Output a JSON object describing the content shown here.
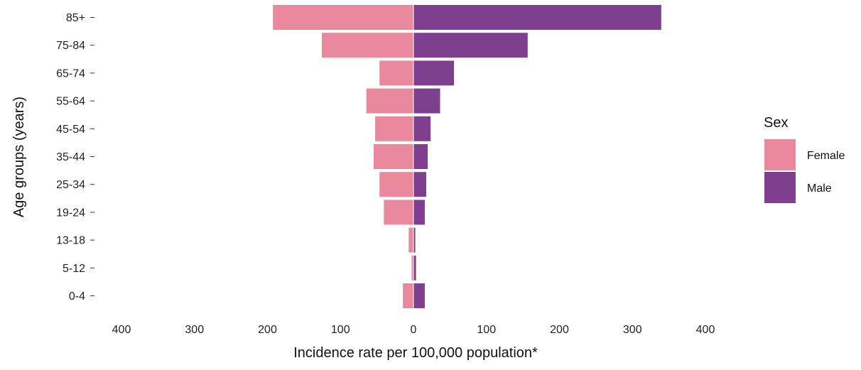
{
  "chart_data": {
    "type": "bar",
    "orientation": "horizontal-population-pyramid",
    "title": "",
    "xlabel": "Incidence rate per 100,000 population*",
    "ylabel": "Age groups (years)",
    "categories": [
      "0-4",
      "5-12",
      "13-18",
      "19-24",
      "25-34",
      "35-44",
      "45-54",
      "55-64",
      "65-74",
      "75-84",
      "85+"
    ],
    "series": [
      {
        "name": "Female",
        "side": "left",
        "color": "#EA899E",
        "values": [
          15,
          3,
          7,
          41,
          47,
          55,
          53,
          65,
          47,
          126,
          193
        ]
      },
      {
        "name": "Male",
        "side": "right",
        "color": "#7E3F8F",
        "values": [
          16,
          4,
          3,
          16,
          18,
          20,
          24,
          37,
          56,
          157,
          340
        ]
      }
    ],
    "xticks": [
      -400,
      -300,
      -200,
      -100,
      0,
      100,
      200,
      300,
      400
    ],
    "xtick_labels": [
      "400",
      "300",
      "200",
      "100",
      "0",
      "100",
      "200",
      "300",
      "400"
    ],
    "xlim": [
      -400,
      400
    ],
    "grid": false,
    "legend": {
      "title": "Sex",
      "position": "right",
      "entries": [
        "Female",
        "Male"
      ]
    }
  }
}
